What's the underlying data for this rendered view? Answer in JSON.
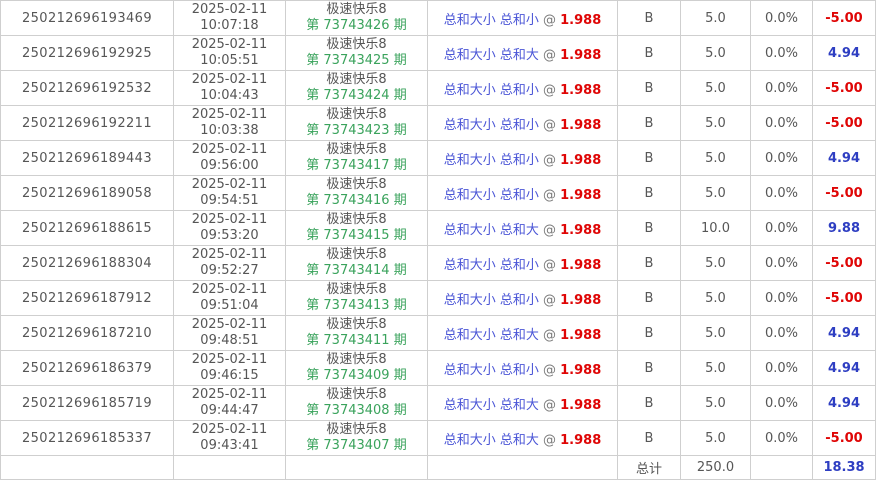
{
  "colors": {
    "text_gray": "#565656",
    "border_gray": "#cfcfcf",
    "period_green": "#3aa35c",
    "bet_blue": "#4a55d6",
    "win_blue": "#2e3ec2",
    "loss_red": "#df0505"
  },
  "table": {
    "rows": [
      {
        "order_id": "250212696193469",
        "date": "2025-02-11",
        "time": "10:07:18",
        "game": "极速快乐8",
        "period": "第 73743426 期",
        "bet": "总和大小 总和小",
        "at": "@",
        "odds": "1.988",
        "mode": "B",
        "amount": "5.0",
        "rebate": "0.0%",
        "result": "-5.00"
      },
      {
        "order_id": "250212696192925",
        "date": "2025-02-11",
        "time": "10:05:51",
        "game": "极速快乐8",
        "period": "第 73743425 期",
        "bet": "总和大小 总和大",
        "at": "@",
        "odds": "1.988",
        "mode": "B",
        "amount": "5.0",
        "rebate": "0.0%",
        "result": "4.94"
      },
      {
        "order_id": "250212696192532",
        "date": "2025-02-11",
        "time": "10:04:43",
        "game": "极速快乐8",
        "period": "第 73743424 期",
        "bet": "总和大小 总和小",
        "at": "@",
        "odds": "1.988",
        "mode": "B",
        "amount": "5.0",
        "rebate": "0.0%",
        "result": "-5.00"
      },
      {
        "order_id": "250212696192211",
        "date": "2025-02-11",
        "time": "10:03:38",
        "game": "极速快乐8",
        "period": "第 73743423 期",
        "bet": "总和大小 总和小",
        "at": "@",
        "odds": "1.988",
        "mode": "B",
        "amount": "5.0",
        "rebate": "0.0%",
        "result": "-5.00"
      },
      {
        "order_id": "250212696189443",
        "date": "2025-02-11",
        "time": "09:56:00",
        "game": "极速快乐8",
        "period": "第 73743417 期",
        "bet": "总和大小 总和小",
        "at": "@",
        "odds": "1.988",
        "mode": "B",
        "amount": "5.0",
        "rebate": "0.0%",
        "result": "4.94"
      },
      {
        "order_id": "250212696189058",
        "date": "2025-02-11",
        "time": "09:54:51",
        "game": "极速快乐8",
        "period": "第 73743416 期",
        "bet": "总和大小 总和小",
        "at": "@",
        "odds": "1.988",
        "mode": "B",
        "amount": "5.0",
        "rebate": "0.0%",
        "result": "-5.00"
      },
      {
        "order_id": "250212696188615",
        "date": "2025-02-11",
        "time": "09:53:20",
        "game": "极速快乐8",
        "period": "第 73743415 期",
        "bet": "总和大小 总和大",
        "at": "@",
        "odds": "1.988",
        "mode": "B",
        "amount": "10.0",
        "rebate": "0.0%",
        "result": "9.88"
      },
      {
        "order_id": "250212696188304",
        "date": "2025-02-11",
        "time": "09:52:27",
        "game": "极速快乐8",
        "period": "第 73743414 期",
        "bet": "总和大小 总和小",
        "at": "@",
        "odds": "1.988",
        "mode": "B",
        "amount": "5.0",
        "rebate": "0.0%",
        "result": "-5.00"
      },
      {
        "order_id": "250212696187912",
        "date": "2025-02-11",
        "time": "09:51:04",
        "game": "极速快乐8",
        "period": "第 73743413 期",
        "bet": "总和大小 总和小",
        "at": "@",
        "odds": "1.988",
        "mode": "B",
        "amount": "5.0",
        "rebate": "0.0%",
        "result": "-5.00"
      },
      {
        "order_id": "250212696187210",
        "date": "2025-02-11",
        "time": "09:48:51",
        "game": "极速快乐8",
        "period": "第 73743411 期",
        "bet": "总和大小 总和大",
        "at": "@",
        "odds": "1.988",
        "mode": "B",
        "amount": "5.0",
        "rebate": "0.0%",
        "result": "4.94"
      },
      {
        "order_id": "250212696186379",
        "date": "2025-02-11",
        "time": "09:46:15",
        "game": "极速快乐8",
        "period": "第 73743409 期",
        "bet": "总和大小 总和小",
        "at": "@",
        "odds": "1.988",
        "mode": "B",
        "amount": "5.0",
        "rebate": "0.0%",
        "result": "4.94"
      },
      {
        "order_id": "250212696185719",
        "date": "2025-02-11",
        "time": "09:44:47",
        "game": "极速快乐8",
        "period": "第 73743408 期",
        "bet": "总和大小 总和大",
        "at": "@",
        "odds": "1.988",
        "mode": "B",
        "amount": "5.0",
        "rebate": "0.0%",
        "result": "4.94"
      },
      {
        "order_id": "250212696185337",
        "date": "2025-02-11",
        "time": "09:43:41",
        "game": "极速快乐8",
        "period": "第 73743407 期",
        "bet": "总和大小 总和大",
        "at": "@",
        "odds": "1.988",
        "mode": "B",
        "amount": "5.0",
        "rebate": "0.0%",
        "result": "-5.00"
      }
    ],
    "total": {
      "label": "总计",
      "amount": "250.0",
      "rebate": "",
      "result": "18.38"
    }
  }
}
